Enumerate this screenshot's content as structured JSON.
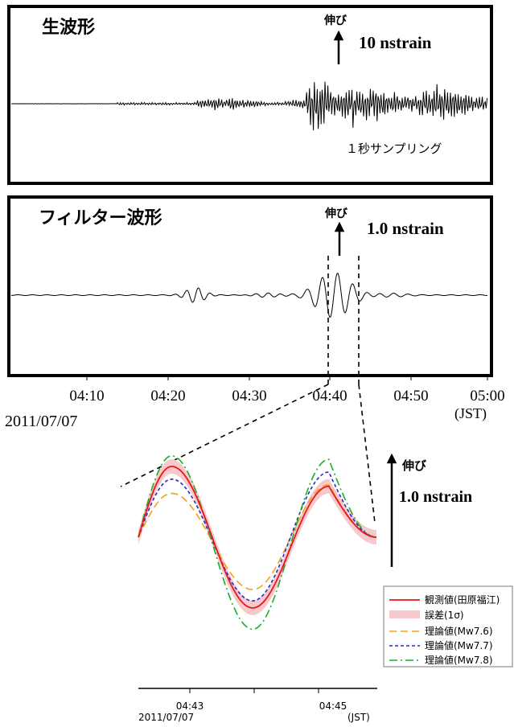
{
  "panels": {
    "raw": {
      "title": "生波形",
      "arrow_label": "伸び",
      "scale": "10 nstrain",
      "note": "１秒サンプリング"
    },
    "filtered": {
      "title": "フィルター波形",
      "arrow_label": "伸び",
      "scale": "1.0 nstrain"
    }
  },
  "time_axis": {
    "ticks": [
      "04:10",
      "04:20",
      "04:30",
      "04:40",
      "04:50",
      "05:00"
    ],
    "date": "2011/07/07",
    "unit": "(JST)"
  },
  "zoom": {
    "arrow_label": "伸び",
    "scale": "1.0 nstrain",
    "ticks": [
      "04:43",
      "04:45"
    ],
    "date": "2011/07/07",
    "unit": "(JST)",
    "legend": [
      {
        "label": "観測値(田原福江)",
        "color": "#e8181a",
        "style": "solid"
      },
      {
        "label": "誤差(1σ)",
        "color": "#f6c9cc",
        "style": "band"
      },
      {
        "label": "理論値(Mw7.6)",
        "color": "#f5a01a",
        "style": "dashed"
      },
      {
        "label": "理論値(Mw7.7)",
        "color": "#1f2bd6",
        "style": "dotted"
      },
      {
        "label": "理論値(Mw7.8)",
        "color": "#17b02a",
        "style": "dashdot"
      }
    ]
  },
  "chart_data": [
    {
      "type": "line",
      "title": "生波形",
      "series": [
        {
          "name": "",
          "trace": "raw strain, 1 s sampling"
        }
      ],
      "x_ticks": [
        "04:10",
        "04:20",
        "04:30",
        "04:40",
        "04:50",
        "05:00"
      ],
      "scale_bar": "10 nstrain"
    },
    {
      "type": "line",
      "title": "フィルター波形",
      "series": [
        {
          "name": "",
          "trace": "filtered strain"
        }
      ],
      "x_ticks": [
        "04:10",
        "04:20",
        "04:30",
        "04:40",
        "04:50",
        "05:00"
      ],
      "scale_bar": "1.0 nstrain"
    },
    {
      "type": "line",
      "x_ticks": [
        "04:43",
        "04:45"
      ],
      "series": [
        {
          "name": "観測値(田原福江)",
          "values": [
            0.0,
            1.0,
            0.0,
            -1.0,
            0.0,
            0.72,
            0.0
          ]
        },
        {
          "name": "理論値(Mw7.6)",
          "values": [
            0.0,
            0.62,
            0.0,
            -0.74,
            0.0,
            0.74,
            0.0
          ]
        },
        {
          "name": "理論値(Mw7.7)",
          "values": [
            0.0,
            0.82,
            0.0,
            -0.9,
            0.0,
            0.92,
            0.0
          ]
        },
        {
          "name": "理論値(Mw7.8)",
          "values": [
            0.0,
            1.15,
            0.0,
            -1.3,
            0.0,
            1.1,
            0.0
          ]
        }
      ],
      "error_band": "誤差(1σ)"
    }
  ]
}
